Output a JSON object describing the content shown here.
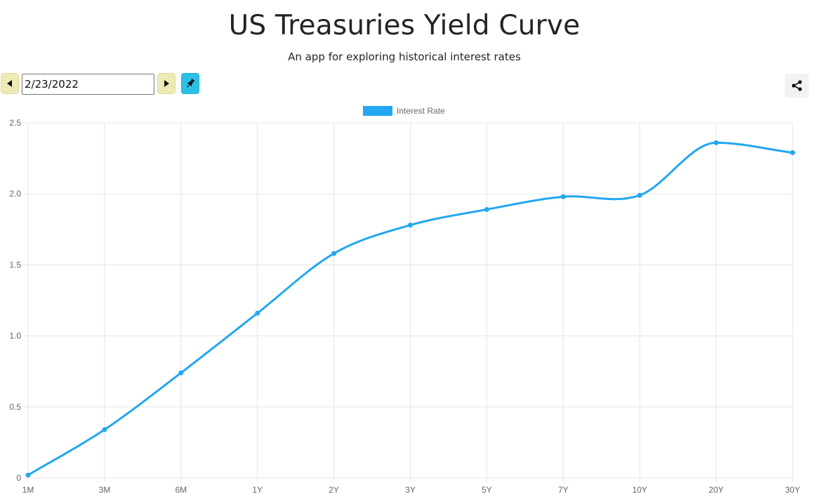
{
  "header": {
    "title": "US Treasuries Yield Curve",
    "subtitle": "An app for exploring historical interest rates"
  },
  "controls": {
    "date_value": "2/23/2022",
    "prev_icon": "triangle-left-icon",
    "next_icon": "triangle-right-icon",
    "pin_icon": "pushpin-icon",
    "share_icon": "share-icon"
  },
  "colors": {
    "accent": "#36a2eb",
    "line": "#22a7f0",
    "nav_button": "#eeeab6",
    "pin_button": "#2bc1e6",
    "grid": "#e5e5e5"
  },
  "chart_data": {
    "type": "line",
    "categories": [
      "1M",
      "3M",
      "6M",
      "1Y",
      "2Y",
      "3Y",
      "5Y",
      "7Y",
      "10Y",
      "20Y",
      "30Y"
    ],
    "series": [
      {
        "name": "Interest Rate",
        "values": [
          0.02,
          0.34,
          0.74,
          1.16,
          1.58,
          1.78,
          1.89,
          1.98,
          1.99,
          2.36,
          2.29
        ]
      }
    ],
    "yticks": [
      "0",
      "0.5",
      "1.0",
      "1.5",
      "2.0",
      "2.5"
    ],
    "ylim": [
      0,
      2.5
    ],
    "legend_position": "top",
    "grid": true
  }
}
